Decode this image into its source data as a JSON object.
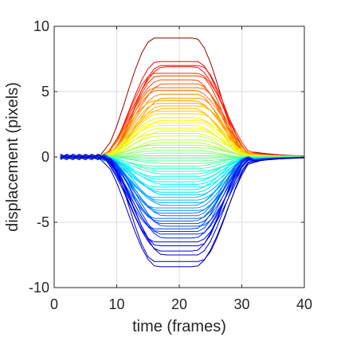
{
  "chart_data": {
    "type": "line",
    "title": "",
    "xlabel": "time (frames)",
    "ylabel": "displacement (pixels)",
    "xlim": [
      0,
      40
    ],
    "ylim": [
      -10,
      10
    ],
    "xticks": [
      0,
      10,
      20,
      30,
      40
    ],
    "yticks": [
      10,
      5,
      0,
      -5,
      -10
    ],
    "grid": true,
    "box": true,
    "colormap": "jet",
    "curve_model": "each series rises from ~0 at frame 8 to a plateau (frames ~16-23), returning toward ~0 by frame 40",
    "x": [
      1,
      2,
      3,
      4,
      5,
      6,
      7,
      8,
      9,
      10,
      11,
      12,
      13,
      14,
      15,
      16,
      17,
      18,
      19,
      20,
      21,
      22,
      23,
      24,
      25,
      26,
      27,
      28,
      29,
      30,
      31,
      32,
      33,
      34,
      35,
      36,
      37,
      38,
      39,
      40
    ],
    "plateau_amplitudes": [
      9.1,
      7.3,
      7.0,
      6.9,
      6.4,
      6.2,
      5.9,
      5.6,
      5.3,
      5.1,
      4.8,
      4.5,
      4.3,
      4.1,
      3.9,
      3.7,
      3.5,
      3.3,
      3.0,
      2.8,
      2.6,
      2.4,
      2.2,
      2.0,
      1.8,
      1.6,
      1.3,
      1.1,
      0.9,
      0.7,
      0.5,
      0.3,
      0.1,
      -0.1,
      -0.3,
      -0.5,
      -0.7,
      -0.9,
      -1.1,
      -1.3,
      -1.5,
      -1.7,
      -1.9,
      -2.1,
      -2.3,
      -2.5,
      -2.7,
      -2.9,
      -3.1,
      -3.3,
      -3.5,
      -3.7,
      -3.9,
      -4.1,
      -4.3,
      -4.5,
      -4.7,
      -4.9,
      -5.1,
      -5.3,
      -5.5,
      -5.7,
      -5.9,
      -6.2,
      -6.5,
      -6.8,
      -7.2,
      -7.5,
      -8.0,
      -8.4
    ],
    "colors": {
      "axis": "#262626",
      "grid": "#dedede",
      "background": "#ffffff"
    }
  }
}
